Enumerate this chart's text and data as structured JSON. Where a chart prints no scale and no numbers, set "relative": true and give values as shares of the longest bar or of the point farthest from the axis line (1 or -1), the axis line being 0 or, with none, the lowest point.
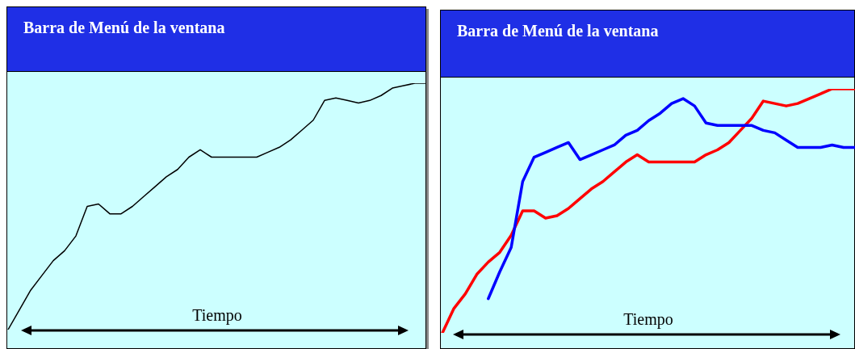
{
  "chart_data": [
    {
      "type": "line",
      "title": "Barra de Menú de la ventana",
      "xlabel": "Tiempo",
      "relative": true,
      "categories": [
        null,
        null,
        null,
        null,
        null,
        null,
        null,
        null,
        null,
        null,
        null,
        null,
        null,
        null,
        null,
        null,
        null,
        null,
        null,
        null,
        null,
        null,
        null,
        null,
        null,
        null,
        null,
        null,
        null,
        null,
        null,
        null,
        null,
        null,
        null,
        null,
        null,
        null
      ],
      "series": [
        {
          "color": "#000000",
          "values": [
            0,
            0.08,
            0.16,
            0.22,
            0.28,
            0.32,
            0.38,
            0.5,
            0.51,
            0.47,
            0.47,
            0.5,
            0.54,
            0.58,
            0.62,
            0.65,
            0.7,
            0.73,
            0.7,
            0.7,
            0.7,
            0.7,
            0.7,
            0.72,
            0.74,
            0.77,
            0.81,
            0.85,
            0.93,
            0.94,
            0.93,
            0.92,
            0.93,
            0.95,
            0.98,
            0.99,
            1,
            1
          ]
        }
      ]
    },
    {
      "type": "line",
      "title": "Barra de Menú de la ventana",
      "xlabel": "Tiempo",
      "relative": true,
      "categories": [
        null,
        null,
        null,
        null,
        null,
        null,
        null,
        null,
        null,
        null,
        null,
        null,
        null,
        null,
        null,
        null,
        null,
        null,
        null,
        null,
        null,
        null,
        null,
        null,
        null,
        null,
        null,
        null,
        null,
        null,
        null,
        null,
        null,
        null,
        null,
        null,
        null
      ],
      "series": [
        {
          "color": "#ff0000",
          "values": [
            0,
            0.1,
            0.16,
            0.24,
            0.29,
            0.33,
            0.4,
            0.5,
            0.5,
            0.47,
            0.48,
            0.51,
            0.55,
            0.59,
            0.62,
            0.66,
            0.7,
            0.73,
            0.7,
            0.7,
            0.7,
            0.7,
            0.7,
            0.73,
            0.75,
            0.78,
            0.83,
            0.88,
            0.95,
            0.94,
            0.93,
            0.94,
            0.96,
            0.98,
            1,
            1,
            1
          ]
        },
        {
          "color": "#0000ff",
          "values": [
            null,
            null,
            null,
            null,
            0.14,
            0.25,
            0.35,
            0.62,
            0.72,
            0.74,
            0.76,
            0.78,
            0.71,
            0.73,
            0.75,
            0.77,
            0.81,
            0.83,
            0.87,
            0.9,
            0.94,
            0.96,
            0.93,
            0.86,
            0.85,
            0.85,
            0.85,
            0.85,
            0.83,
            0.82,
            0.79,
            0.76,
            0.76,
            0.76,
            0.77,
            0.76,
            0.76
          ]
        }
      ]
    }
  ]
}
